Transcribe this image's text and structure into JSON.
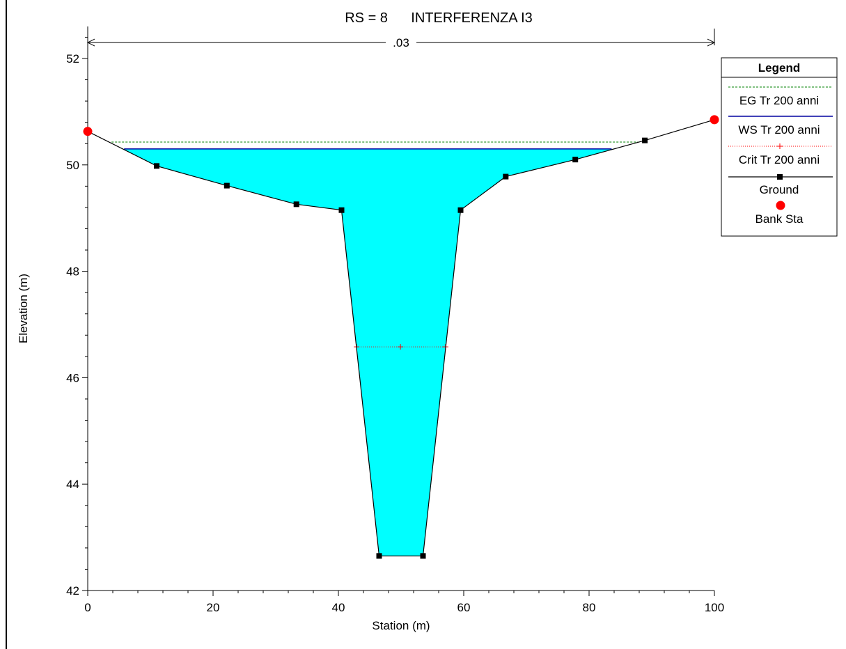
{
  "chart_data": {
    "type": "area",
    "title": "RS = 8      INTERFERENZA I3",
    "xlabel": "Station (m)",
    "ylabel": "Elevation (m)",
    "xlim": [
      0,
      100
    ],
    "ylim": [
      42,
      52.5
    ],
    "x_ticks": [
      0,
      20,
      40,
      60,
      80,
      100
    ],
    "y_ticks": [
      42,
      44,
      46,
      48,
      50,
      52
    ],
    "x_minor_step": 4,
    "y_minor_step": 0.4,
    "manning_label": ".03",
    "manning_span": [
      0,
      100
    ],
    "manning_y": 52.3,
    "colors": {
      "water": "#00ffff",
      "eg": "#008000",
      "ws": "#0000a0",
      "crit": "#ff0000",
      "ground": "#000000",
      "bank": "#ff0000"
    },
    "series": [
      {
        "name": "Ground",
        "x": [
          0,
          11,
          22.2,
          33.3,
          40.5,
          46.5,
          53.5,
          59.5,
          66.7,
          77.8,
          88.9,
          100
        ],
        "y": [
          50.63,
          49.98,
          49.61,
          49.26,
          49.15,
          42.65,
          42.65,
          49.15,
          49.78,
          50.1,
          50.46,
          50.85
        ]
      },
      {
        "name": "WS Tr 200 anni",
        "x": [
          5.8,
          83.6
        ],
        "y": [
          50.3,
          50.3
        ]
      },
      {
        "name": "EG Tr 200 anni",
        "x": [
          3.8,
          88.2
        ],
        "y": [
          50.43,
          50.43
        ]
      },
      {
        "name": "Crit Tr 200 anni",
        "x": [
          42.9,
          49.9,
          57.1
        ],
        "y": [
          46.58,
          46.58,
          46.58
        ]
      },
      {
        "name": "Bank Sta",
        "x": [
          0,
          100
        ],
        "y": [
          50.63,
          50.85
        ]
      }
    ],
    "legend": {
      "title": "Legend",
      "position": "right",
      "entries": [
        {
          "label": "EG Tr 200 anni",
          "style": "eg"
        },
        {
          "label": "WS Tr 200 anni",
          "style": "ws"
        },
        {
          "label": "Crit Tr 200 anni",
          "style": "crit"
        },
        {
          "label": "Ground",
          "style": "ground"
        },
        {
          "label": "Bank Sta",
          "style": "bank"
        }
      ]
    }
  }
}
